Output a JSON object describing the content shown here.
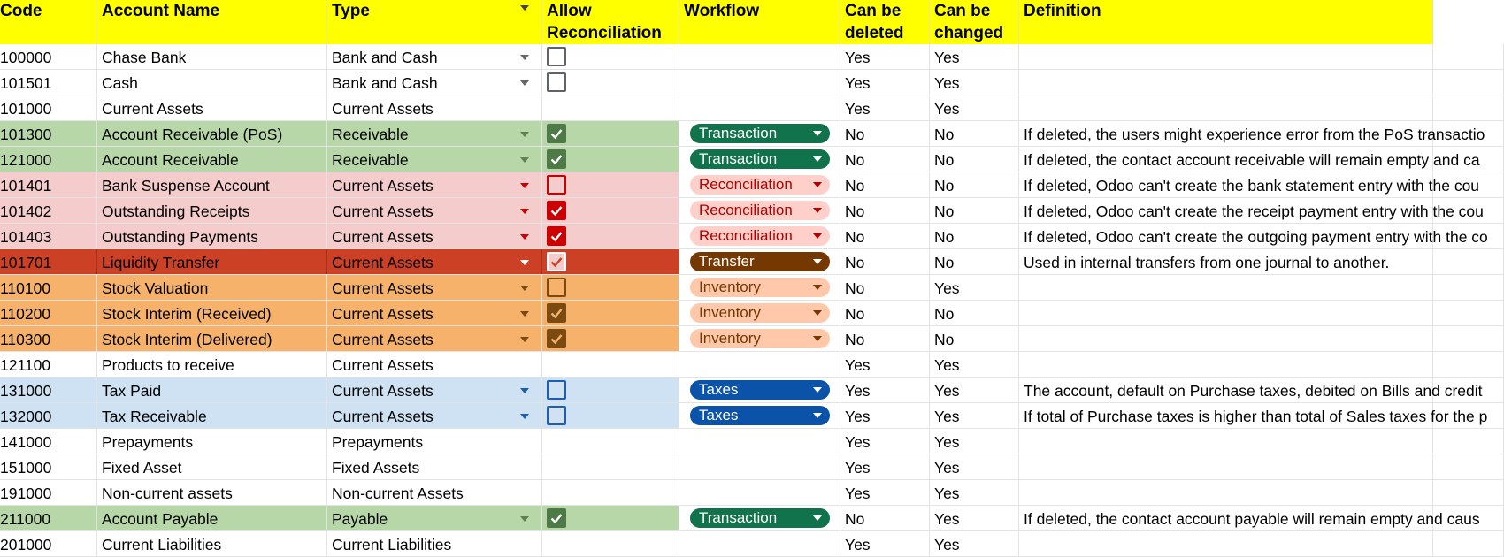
{
  "headers": {
    "code": "Code",
    "account_name": "Account Name",
    "type": "Type",
    "allow_reconciliation": "Allow Reconciliation",
    "workflow": "Workflow",
    "can_be_deleted": "Can be deleted",
    "can_be_changed": "Can be changed",
    "definition": "Definition"
  },
  "colors": {
    "header_bg": "#ffff00",
    "green_row": "#b7d7a8",
    "pink_row": "#f4cccc",
    "red_row": "#cc4125",
    "orange_row": "#f6b26b",
    "blue_row": "#cfe2f3",
    "transaction_chip": "#11734b",
    "reconciliation_chip": "#ffcfc9",
    "transfer_chip": "#753800",
    "inventory_chip": "#ffc8aa",
    "taxes_chip": "#0a53a8"
  },
  "rows": [
    {
      "code": "100000",
      "name": "Chase Bank",
      "type": "Bank and Cash",
      "type_dropdown": true,
      "reconcile": "unchecked",
      "workflow": "",
      "deleted": "Yes",
      "changed": "Yes",
      "definition": "",
      "style": "plain"
    },
    {
      "code": "101501",
      "name": "Cash",
      "type": "Bank and Cash",
      "type_dropdown": true,
      "reconcile": "unchecked",
      "workflow": "",
      "deleted": "Yes",
      "changed": "Yes",
      "definition": "",
      "style": "plain"
    },
    {
      "code": "101000",
      "name": "Current Assets",
      "type": "Current Assets",
      "type_dropdown": false,
      "reconcile": "none",
      "workflow": "",
      "deleted": "Yes",
      "changed": "Yes",
      "definition": "",
      "style": "plain"
    },
    {
      "code": "101300",
      "name": "Account Receivable (PoS)",
      "type": "Receivable",
      "type_dropdown": true,
      "reconcile": "checked",
      "workflow": "Transaction",
      "deleted": "No",
      "changed": "No",
      "definition": "If deleted, the users might experience error from the PoS transactio",
      "style": "green"
    },
    {
      "code": "121000",
      "name": "Account Receivable",
      "type": "Receivable",
      "type_dropdown": true,
      "reconcile": "checked",
      "workflow": "Transaction",
      "deleted": "No",
      "changed": "No",
      "definition": "If deleted, the contact account  receivable will remain empty and ca",
      "style": "green"
    },
    {
      "code": "101401",
      "name": "Bank Suspense Account",
      "type": "Current Assets",
      "type_dropdown": true,
      "reconcile": "unchecked",
      "workflow": "Reconciliation",
      "deleted": "No",
      "changed": "No",
      "definition": "If deleted, Odoo can't create the bank statement entry with the cou",
      "style": "pink"
    },
    {
      "code": "101402",
      "name": "Outstanding Receipts",
      "type": "Current Assets",
      "type_dropdown": true,
      "reconcile": "checked",
      "workflow": "Reconciliation",
      "deleted": "No",
      "changed": "No",
      "definition": "If deleted, Odoo can't create the receipt payment entry with the cou",
      "style": "pink"
    },
    {
      "code": "101403",
      "name": "Outstanding Payments",
      "type": "Current Assets",
      "type_dropdown": true,
      "reconcile": "checked",
      "workflow": "Reconciliation",
      "deleted": "No",
      "changed": "No",
      "definition": "If deleted, Odoo can't create the outgoing payment entry with the co",
      "style": "pink"
    },
    {
      "code": "101701",
      "name": "Liquidity Transfer",
      "type": "Current Assets",
      "type_dropdown": true,
      "reconcile": "checked",
      "workflow": "Transfer",
      "deleted": "No",
      "changed": "No",
      "definition": "Used in internal transfers from one journal to another.",
      "style": "red"
    },
    {
      "code": "110100",
      "name": "Stock Valuation",
      "type": "Current Assets",
      "type_dropdown": true,
      "reconcile": "unchecked",
      "workflow": "Inventory",
      "deleted": "No",
      "changed": "Yes",
      "definition": "",
      "style": "orange"
    },
    {
      "code": "110200",
      "name": "Stock Interim (Received)",
      "type": "Current Assets",
      "type_dropdown": true,
      "reconcile": "checked",
      "workflow": "Inventory",
      "deleted": "No",
      "changed": "No",
      "definition": "",
      "style": "orange"
    },
    {
      "code": "110300",
      "name": "Stock Interim (Delivered)",
      "type": "Current Assets",
      "type_dropdown": true,
      "reconcile": "checked",
      "workflow": "Inventory",
      "deleted": "No",
      "changed": "No",
      "definition": "",
      "style": "orange"
    },
    {
      "code": "121100",
      "name": "Products to receive",
      "type": "Current Assets",
      "type_dropdown": false,
      "reconcile": "none",
      "workflow": "",
      "deleted": "Yes",
      "changed": "Yes",
      "definition": "",
      "style": "plain"
    },
    {
      "code": "131000",
      "name": "Tax Paid",
      "type": "Current Assets",
      "type_dropdown": true,
      "reconcile": "unchecked",
      "workflow": "Taxes",
      "deleted": "Yes",
      "changed": "Yes",
      "definition": "The account, default on Purchase taxes, debited on Bills and credit",
      "style": "blue"
    },
    {
      "code": "132000",
      "name": "Tax Receivable",
      "type": "Current Assets",
      "type_dropdown": true,
      "reconcile": "unchecked",
      "workflow": "Taxes",
      "deleted": "Yes",
      "changed": "Yes",
      "definition": "If total of Purchase taxes is higher than total of Sales taxes for the p",
      "style": "blue"
    },
    {
      "code": "141000",
      "name": "Prepayments",
      "type": "Prepayments",
      "type_dropdown": false,
      "reconcile": "none",
      "workflow": "",
      "deleted": "Yes",
      "changed": "Yes",
      "definition": "",
      "style": "plain"
    },
    {
      "code": "151000",
      "name": "Fixed Asset",
      "type": "Fixed Assets",
      "type_dropdown": false,
      "reconcile": "none",
      "workflow": "",
      "deleted": "Yes",
      "changed": "Yes",
      "definition": "",
      "style": "plain"
    },
    {
      "code": "191000",
      "name": "Non-current assets",
      "type": "Non-current Assets",
      "type_dropdown": false,
      "reconcile": "none",
      "workflow": "",
      "deleted": "Yes",
      "changed": "Yes",
      "definition": "",
      "style": "plain"
    },
    {
      "code": "211000",
      "name": "Account Payable",
      "type": "Payable",
      "type_dropdown": true,
      "reconcile": "checked",
      "workflow": "Transaction",
      "deleted": "No",
      "changed": "Yes",
      "definition": "If deleted, the contact account payable will remain empty and caus",
      "style": "green"
    },
    {
      "code": "201000",
      "name": "Current Liabilities",
      "type": "Current Liabilities",
      "type_dropdown": false,
      "reconcile": "none",
      "workflow": "",
      "deleted": "Yes",
      "changed": "Yes",
      "definition": "",
      "style": "plain"
    }
  ]
}
